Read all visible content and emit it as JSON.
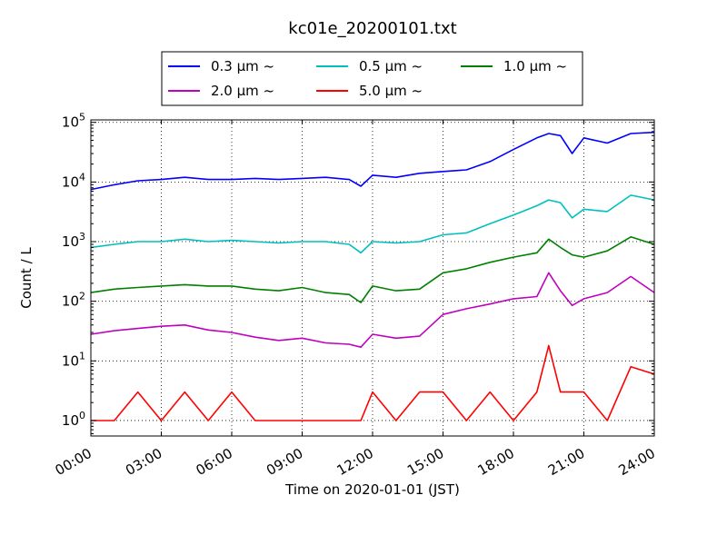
{
  "chart_data": {
    "type": "line",
    "title": "kc01e_20200101.txt",
    "xlabel": "Time on 2020-01-01 (JST)",
    "ylabel": "Count / L",
    "yscale": "log",
    "ylim": [
      0.55,
      110000
    ],
    "xlim": [
      "00:00",
      "24:00"
    ],
    "x_tick_labels": [
      "00:00",
      "03:00",
      "06:00",
      "09:00",
      "12:00",
      "15:00",
      "18:00",
      "21:00",
      "24:00"
    ],
    "y_tick_labels": [
      {
        "base": "10",
        "exp": "0"
      },
      {
        "base": "10",
        "exp": "1"
      },
      {
        "base": "10",
        "exp": "2"
      },
      {
        "base": "10",
        "exp": "3"
      },
      {
        "base": "10",
        "exp": "4"
      },
      {
        "base": "10",
        "exp": "5"
      }
    ],
    "grid": true,
    "legend_position": "top",
    "x_hours": [
      0,
      1,
      2,
      3,
      4,
      5,
      6,
      7,
      8,
      9,
      10,
      11,
      11.5,
      12,
      13,
      14,
      15,
      16,
      17,
      18,
      19,
      19.5,
      20,
      20.5,
      21,
      22,
      23,
      24
    ],
    "series": [
      {
        "name": "0.3 μm ~",
        "color": "#0000ff",
        "values": [
          7500,
          9000,
          10500,
          11000,
          12000,
          11000,
          11000,
          11500,
          11000,
          11500,
          12000,
          11000,
          8500,
          13000,
          12000,
          14000,
          15000,
          16000,
          22000,
          35000,
          55000,
          65000,
          60000,
          30000,
          55000,
          45000,
          65000,
          68000
        ]
      },
      {
        "name": "0.5 μm ~",
        "color": "#00bfbf",
        "values": [
          800,
          900,
          1000,
          1000,
          1100,
          1000,
          1050,
          1000,
          950,
          1000,
          1000,
          900,
          650,
          1000,
          950,
          1000,
          1300,
          1400,
          2000,
          2800,
          4000,
          5000,
          4500,
          2500,
          3500,
          3200,
          6000,
          5000
        ]
      },
      {
        "name": "1.0 μm ~",
        "color": "#008000",
        "values": [
          140,
          160,
          170,
          180,
          190,
          180,
          180,
          160,
          150,
          170,
          140,
          130,
          95,
          180,
          150,
          160,
          300,
          350,
          450,
          550,
          650,
          1100,
          800,
          600,
          550,
          700,
          1200,
          900
        ]
      },
      {
        "name": "2.0 μm ~",
        "color": "#bf00bf",
        "values": [
          28,
          32,
          35,
          38,
          40,
          33,
          30,
          25,
          22,
          24,
          20,
          19,
          17,
          28,
          24,
          26,
          60,
          75,
          90,
          110,
          120,
          300,
          150,
          85,
          110,
          140,
          260,
          140
        ]
      },
      {
        "name": "5.0 μm ~",
        "color": "#ff0000",
        "values": [
          1,
          1,
          3,
          1,
          3,
          1,
          3,
          1,
          1,
          1,
          1,
          1,
          1,
          3,
          1,
          3,
          3,
          1,
          3,
          1,
          3,
          18,
          3,
          3,
          3,
          1,
          8,
          6
        ]
      }
    ]
  }
}
